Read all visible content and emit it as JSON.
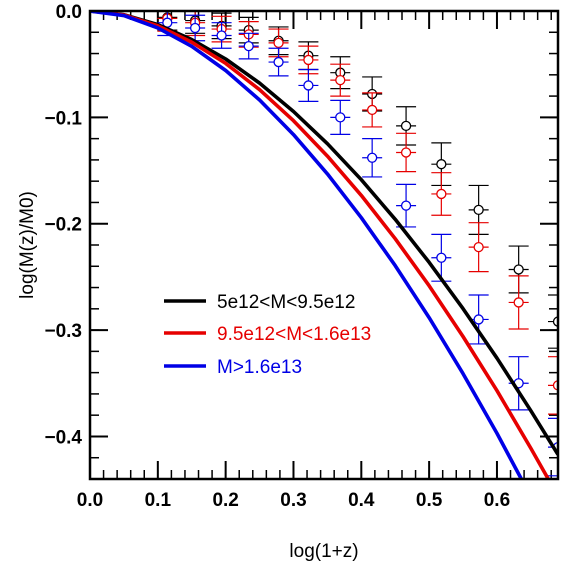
{
  "chart_data": {
    "type": "scatter",
    "xlabel": "log(1+z)",
    "ylabel": "log(M(z)/M0)",
    "xlim": [
      0.0,
      0.69
    ],
    "ylim": [
      -0.44,
      0.0
    ],
    "x_ticks": [
      "0.0",
      "0.1",
      "0.2",
      "0.3",
      "0.4",
      "0.5",
      "0.6"
    ],
    "y_ticks": [
      "0.0",
      "−0.1",
      "−0.2",
      "−0.3",
      "−0.4"
    ],
    "legend_position": "center-left",
    "series": [
      {
        "name": "5e12<M<9.5e12",
        "color": "#000000",
        "curve": [
          {
            "x": 0.0,
            "y": 0.0
          },
          {
            "x": 0.05,
            "y": -0.0035
          },
          {
            "x": 0.1,
            "y": -0.0128
          },
          {
            "x": 0.15,
            "y": -0.0268
          },
          {
            "x": 0.2,
            "y": -0.0451
          },
          {
            "x": 0.25,
            "y": -0.0678
          },
          {
            "x": 0.3,
            "y": -0.0945
          },
          {
            "x": 0.35,
            "y": -0.1248
          },
          {
            "x": 0.4,
            "y": -0.1586
          },
          {
            "x": 0.45,
            "y": -0.1958
          },
          {
            "x": 0.5,
            "y": -0.2363
          },
          {
            "x": 0.55,
            "y": -0.2798
          },
          {
            "x": 0.6,
            "y": -0.3264
          },
          {
            "x": 0.65,
            "y": -0.3759
          },
          {
            "x": 0.69,
            "y": -0.417
          }
        ],
        "points": [
          {
            "x": 0.114,
            "y": -0.006,
            "err": 0.012
          },
          {
            "x": 0.155,
            "y": -0.009,
            "err": 0.012
          },
          {
            "x": 0.194,
            "y": -0.014,
            "err": 0.012
          },
          {
            "x": 0.234,
            "y": -0.018,
            "err": 0.012
          },
          {
            "x": 0.278,
            "y": -0.028,
            "err": 0.013
          },
          {
            "x": 0.322,
            "y": -0.042,
            "err": 0.013
          },
          {
            "x": 0.369,
            "y": -0.058,
            "err": 0.015
          },
          {
            "x": 0.416,
            "y": -0.078,
            "err": 0.016
          },
          {
            "x": 0.466,
            "y": -0.108,
            "err": 0.018
          },
          {
            "x": 0.518,
            "y": -0.144,
            "err": 0.02
          },
          {
            "x": 0.573,
            "y": -0.187,
            "err": 0.023
          },
          {
            "x": 0.632,
            "y": -0.243,
            "err": 0.022
          },
          {
            "x": 0.69,
            "y": -0.292,
            "err": 0.025
          }
        ]
      },
      {
        "name": "9.5e12<M<1.6e13",
        "color": "#e60000",
        "curve": [
          {
            "x": 0.0,
            "y": 0.0
          },
          {
            "x": 0.05,
            "y": -0.0038
          },
          {
            "x": 0.1,
            "y": -0.014
          },
          {
            "x": 0.15,
            "y": -0.0292
          },
          {
            "x": 0.2,
            "y": -0.0493
          },
          {
            "x": 0.25,
            "y": -0.074
          },
          {
            "x": 0.3,
            "y": -0.1031
          },
          {
            "x": 0.35,
            "y": -0.1364
          },
          {
            "x": 0.4,
            "y": -0.1734
          },
          {
            "x": 0.45,
            "y": -0.2141
          },
          {
            "x": 0.5,
            "y": -0.2583
          },
          {
            "x": 0.55,
            "y": -0.306
          },
          {
            "x": 0.6,
            "y": -0.357
          },
          {
            "x": 0.65,
            "y": -0.4112
          },
          {
            "x": 0.69,
            "y": -0.4562
          }
        ],
        "points": [
          {
            "x": 0.114,
            "y": -0.007,
            "err": 0.012
          },
          {
            "x": 0.155,
            "y": -0.011,
            "err": 0.012
          },
          {
            "x": 0.194,
            "y": -0.017,
            "err": 0.012
          },
          {
            "x": 0.234,
            "y": -0.022,
            "err": 0.012
          },
          {
            "x": 0.278,
            "y": -0.03,
            "err": 0.013
          },
          {
            "x": 0.322,
            "y": -0.046,
            "err": 0.013
          },
          {
            "x": 0.369,
            "y": -0.065,
            "err": 0.015
          },
          {
            "x": 0.416,
            "y": -0.093,
            "err": 0.016
          },
          {
            "x": 0.466,
            "y": -0.133,
            "err": 0.018
          },
          {
            "x": 0.518,
            "y": -0.172,
            "err": 0.02
          },
          {
            "x": 0.573,
            "y": -0.222,
            "err": 0.023
          },
          {
            "x": 0.632,
            "y": -0.274,
            "err": 0.025
          },
          {
            "x": 0.69,
            "y": -0.352,
            "err": 0.027
          }
        ]
      },
      {
        "name": "M>1.6e13",
        "color": "#0000e6",
        "curve": [
          {
            "x": 0.0,
            "y": 0.0
          },
          {
            "x": 0.05,
            "y": -0.0043
          },
          {
            "x": 0.1,
            "y": -0.0159
          },
          {
            "x": 0.15,
            "y": -0.0332
          },
          {
            "x": 0.2,
            "y": -0.0559
          },
          {
            "x": 0.25,
            "y": -0.0837
          },
          {
            "x": 0.3,
            "y": -0.1162
          },
          {
            "x": 0.35,
            "y": -0.1532
          },
          {
            "x": 0.4,
            "y": -0.1943
          },
          {
            "x": 0.45,
            "y": -0.2394
          },
          {
            "x": 0.5,
            "y": -0.2883
          },
          {
            "x": 0.55,
            "y": -0.3409
          },
          {
            "x": 0.6,
            "y": -0.3971
          },
          {
            "x": 0.65,
            "y": -0.4568
          },
          {
            "x": 0.69,
            "y": -0.5062
          }
        ],
        "points": [
          {
            "x": 0.114,
            "y": -0.011,
            "err": 0.012
          },
          {
            "x": 0.155,
            "y": -0.016,
            "err": 0.012
          },
          {
            "x": 0.194,
            "y": -0.023,
            "err": 0.012
          },
          {
            "x": 0.234,
            "y": -0.033,
            "err": 0.012
          },
          {
            "x": 0.278,
            "y": -0.048,
            "err": 0.013
          },
          {
            "x": 0.322,
            "y": -0.07,
            "err": 0.015
          },
          {
            "x": 0.369,
            "y": -0.1,
            "err": 0.016
          },
          {
            "x": 0.416,
            "y": -0.138,
            "err": 0.018
          },
          {
            "x": 0.466,
            "y": -0.183,
            "err": 0.02
          },
          {
            "x": 0.518,
            "y": -0.232,
            "err": 0.022
          },
          {
            "x": 0.573,
            "y": -0.29,
            "err": 0.023
          },
          {
            "x": 0.632,
            "y": -0.35,
            "err": 0.025
          },
          {
            "x": 0.69,
            "y": -0.41,
            "err": 0.027
          }
        ]
      }
    ]
  }
}
